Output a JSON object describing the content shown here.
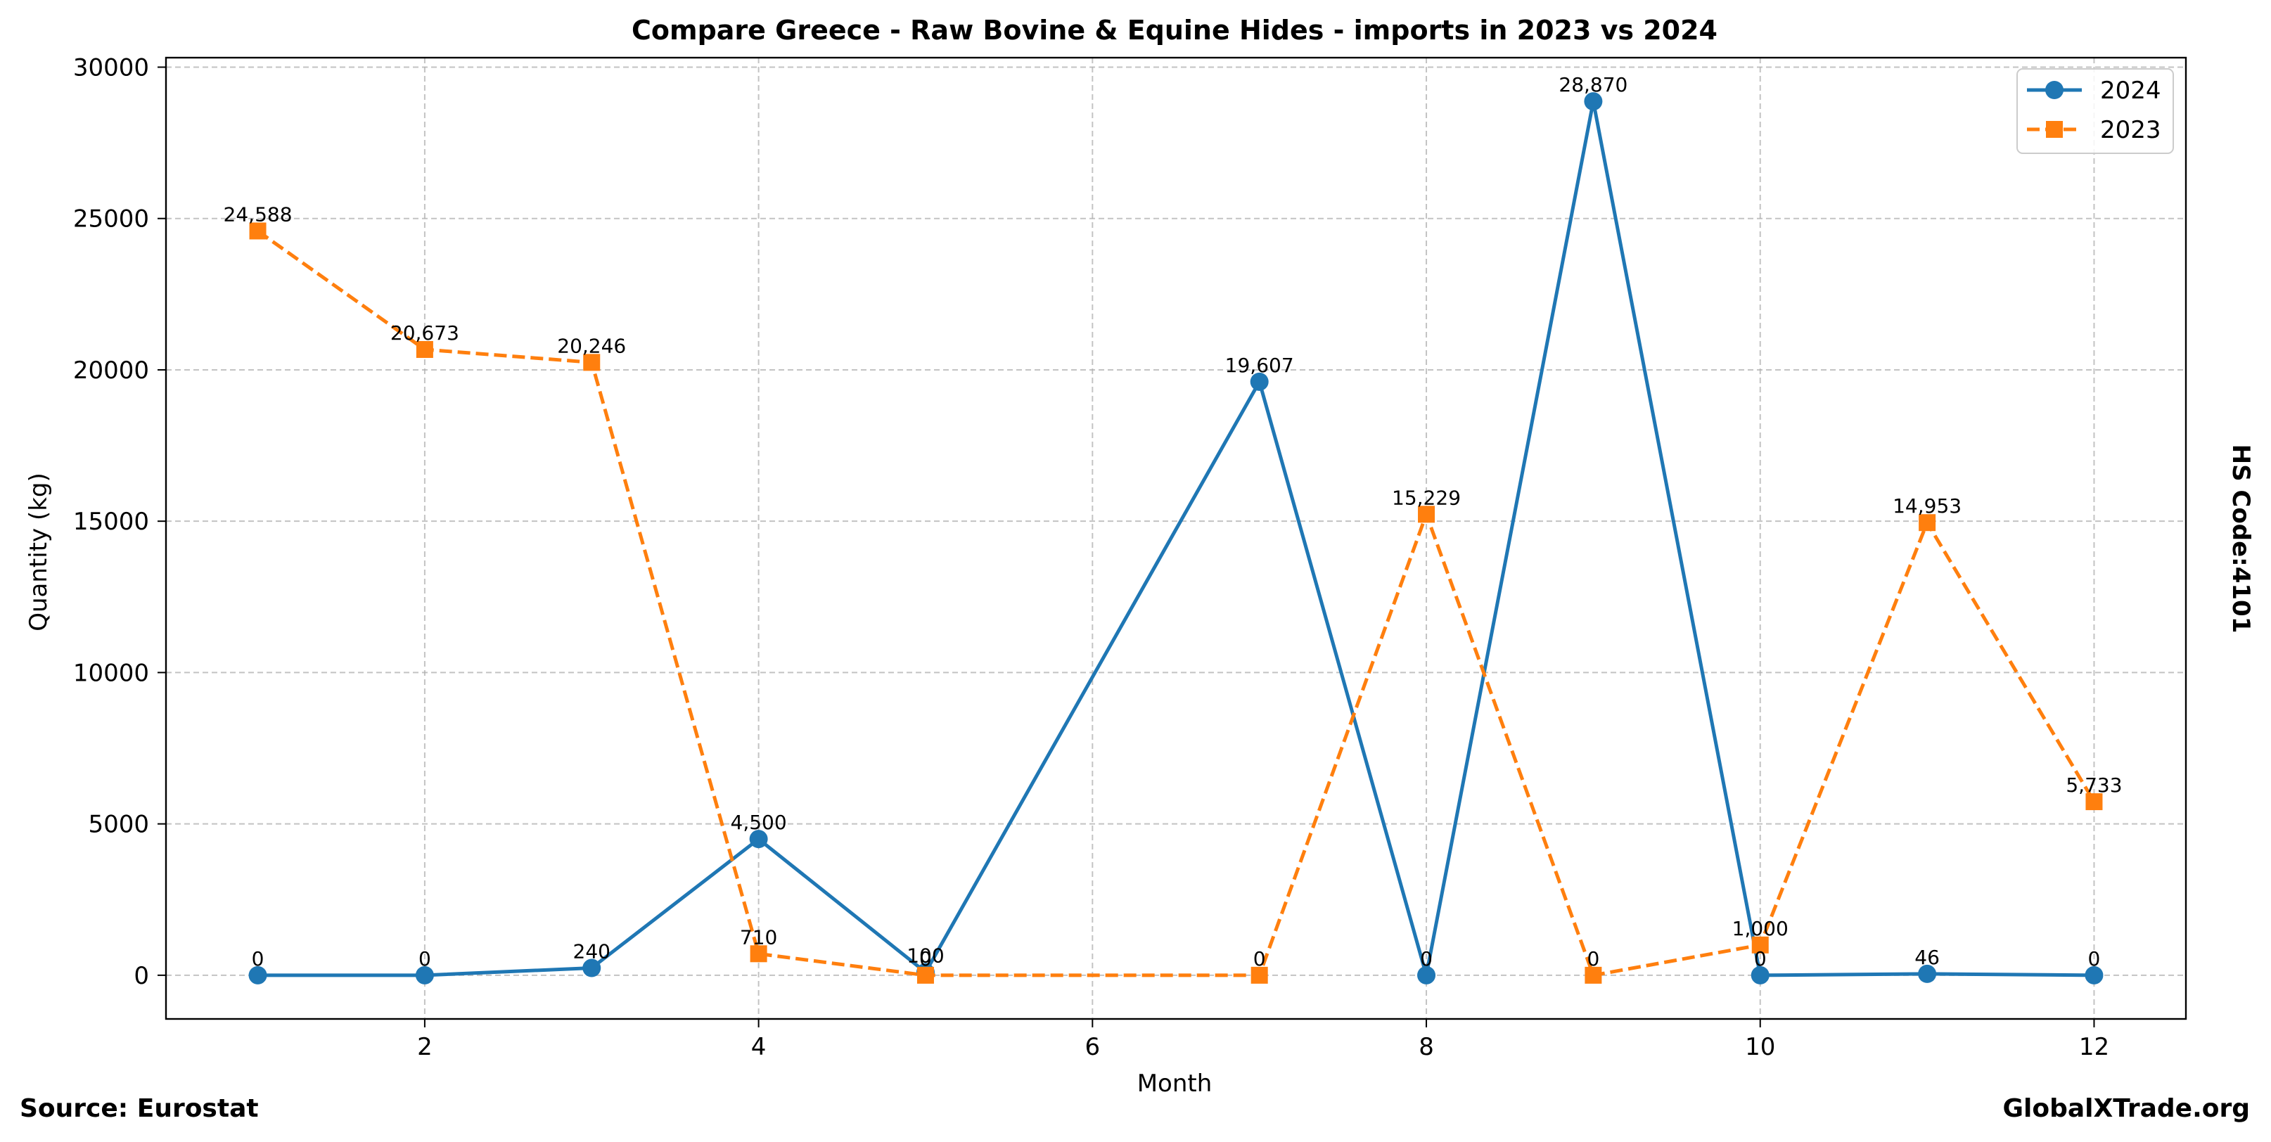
{
  "chart_data": {
    "type": "line",
    "title": "Compare Greece - Raw Bovine & Equine Hides - imports in 2023 vs 2024",
    "xlabel": "Month",
    "ylabel": "Quantity (kg)",
    "xlim": [
      0.45,
      12.55
    ],
    "ylim": [
      -1443.5,
      30313.5
    ],
    "x_ticks": [
      2,
      4,
      6,
      8,
      10,
      12
    ],
    "y_ticks": [
      0,
      5000,
      10000,
      15000,
      20000,
      25000,
      30000
    ],
    "grid": true,
    "legend_position": "top-right",
    "series": [
      {
        "name": "2024",
        "color": "#1f77b4",
        "style": "solid",
        "marker": "circle",
        "x": [
          1,
          2,
          3,
          4,
          5,
          7,
          8,
          9,
          10,
          11,
          12
        ],
        "values": [
          0,
          0,
          240,
          4500,
          100,
          19607,
          0,
          28870,
          0,
          46,
          0
        ],
        "labels": [
          "0",
          "0",
          "240",
          "4,500",
          "100",
          "19,607",
          "0",
          "28,870",
          "0",
          "46",
          "0"
        ]
      },
      {
        "name": "2023",
        "color": "#ff7f0e",
        "style": "dashed",
        "marker": "square",
        "x": [
          1,
          2,
          3,
          4,
          5,
          7,
          8,
          9,
          10,
          11,
          12
        ],
        "values": [
          24588,
          20673,
          20246,
          710,
          0,
          0,
          15229,
          0,
          1000,
          14953,
          5733
        ],
        "labels": [
          "24,588",
          "20,673",
          "20,246",
          "710",
          "0",
          "0",
          "15,229",
          "0",
          "1,000",
          "14,953",
          "5,733"
        ]
      }
    ]
  },
  "side_label": "HS Code:4101",
  "footer": {
    "source": "Source: Eurostat",
    "site": "GlobalXTrade.org"
  }
}
